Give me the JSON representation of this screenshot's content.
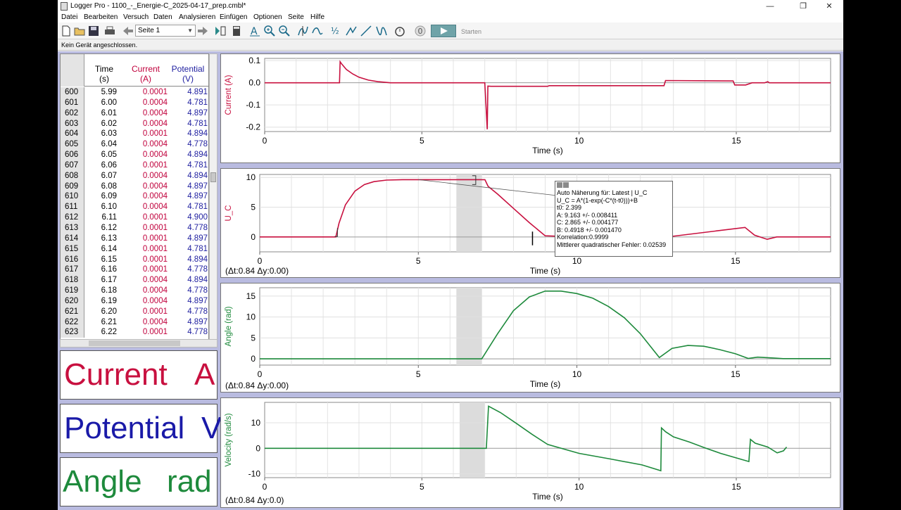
{
  "window": {
    "title": "Logger Pro - 1100_-_Energie-C_2025-04-17_prep.cmbl*",
    "min_symbol": "—",
    "max_symbol": "❐",
    "close_symbol": "✕"
  },
  "menu": [
    "Datei",
    "Bearbeiten",
    "Versuch",
    "Daten",
    "Analysieren",
    "Einfügen",
    "Optionen",
    "Seite",
    "Hilfe"
  ],
  "toolbar": {
    "page_select": "Seite 1",
    "start_label": "Starten",
    "icons": [
      "new-file-icon",
      "open-folder-icon",
      "save-icon",
      "print-icon",
      "back-arrow-icon",
      "forward-arrow-icon",
      "data-browser-icon",
      "calculator-icon",
      "autoscale-icon",
      "zoom-in-icon",
      "zoom-out-icon",
      "examine-icon",
      "tangent-icon",
      "integral-icon",
      "statistics-icon",
      "linear-fit-icon",
      "curve-fit-icon",
      "stopwatch-icon",
      "zero-icon",
      "start-icon"
    ]
  },
  "status": "Kein Gerät angeschlossen.",
  "table": {
    "columns": [
      {
        "name": "Time",
        "unit": "(s)"
      },
      {
        "name": "Current",
        "unit": "(A)"
      },
      {
        "name": "Potential",
        "unit": "(V)"
      }
    ],
    "rows": [
      [
        "600",
        "5.99",
        "0.0001",
        "4.891"
      ],
      [
        "601",
        "6.00",
        "0.0004",
        "4.781"
      ],
      [
        "602",
        "6.01",
        "0.0004",
        "4.897"
      ],
      [
        "603",
        "6.02",
        "0.0004",
        "4.781"
      ],
      [
        "604",
        "6.03",
        "0.0001",
        "4.894"
      ],
      [
        "605",
        "6.04",
        "0.0004",
        "4.778"
      ],
      [
        "606",
        "6.05",
        "0.0004",
        "4.894"
      ],
      [
        "607",
        "6.06",
        "0.0001",
        "4.781"
      ],
      [
        "608",
        "6.07",
        "0.0004",
        "4.894"
      ],
      [
        "609",
        "6.08",
        "0.0004",
        "4.897"
      ],
      [
        "610",
        "6.09",
        "0.0004",
        "4.897"
      ],
      [
        "611",
        "6.10",
        "0.0004",
        "4.781"
      ],
      [
        "612",
        "6.11",
        "0.0001",
        "4.900"
      ],
      [
        "613",
        "6.12",
        "0.0001",
        "4.778"
      ],
      [
        "614",
        "6.13",
        "0.0001",
        "4.897"
      ],
      [
        "615",
        "6.14",
        "0.0001",
        "4.781"
      ],
      [
        "616",
        "6.15",
        "0.0001",
        "4.894"
      ],
      [
        "617",
        "6.16",
        "0.0001",
        "4.778"
      ],
      [
        "618",
        "6.17",
        "0.0004",
        "4.894"
      ],
      [
        "619",
        "6.18",
        "0.0004",
        "4.778"
      ],
      [
        "620",
        "6.19",
        "0.0004",
        "4.897"
      ],
      [
        "621",
        "6.20",
        "0.0001",
        "4.778"
      ],
      [
        "622",
        "6.21",
        "0.0004",
        "4.897"
      ],
      [
        "623",
        "6.22",
        "0.0001",
        "4.778"
      ]
    ]
  },
  "meters": [
    {
      "name": "Current",
      "unit": "A",
      "color": "#c8103f"
    },
    {
      "name": "Potential",
      "unit": "V",
      "color": "#1a1aa8"
    },
    {
      "name": "Angle",
      "unit": "rad",
      "color": "#1e8a3c"
    }
  ],
  "colors": {
    "current": "#c8103f",
    "potential": "#c8103f",
    "green": "#1e8a3c",
    "selection": "#dcdcdc"
  },
  "graph_current": {
    "delta": ""
  },
  "graph_uc": {
    "delta": "(Δt:0.84 Δy:0.00)"
  },
  "graph_angle": {
    "delta": "(Δt:0.84 Δy:0.00)"
  },
  "graph_velocity": {
    "delta": "(Δt:0.84 Δy:0.0)"
  },
  "fit": {
    "lines": [
      "Auto Näherung für: Latest | U_C",
      "U_C = A*(1-exp(-C*(t-t0)))+B",
      "t0: 2.399",
      "A: 9.163 +/- 0.008411",
      "C: 2.865 +/- 0.004177",
      "B: 0.4918 +/- 0.001470",
      "Korrelation:0.9999",
      "Mittlerer quadratischer Fehler: 0.02539"
    ]
  },
  "chart_data": [
    {
      "type": "line",
      "xlabel": "Time (s)",
      "ylabel": "Current (A)",
      "xlim": [
        0,
        18
      ],
      "ylim": [
        -0.22,
        0.11
      ],
      "xticks": [
        0,
        5,
        10,
        15
      ],
      "yticks": [
        0.1,
        0.0,
        -0.1,
        -0.2
      ],
      "ytick_labels": [
        "0.1",
        "0.0",
        "-0.1",
        "-0.2"
      ],
      "x": [
        0,
        2.38,
        2.4,
        2.45,
        2.6,
        2.8,
        3.0,
        3.3,
        3.6,
        4.0,
        7.0,
        7.08,
        7.1,
        7.2,
        7.3,
        7.5,
        9.0,
        9.05,
        12.7,
        12.75,
        14.9,
        14.95,
        15.3,
        15.5,
        15.9,
        16.0,
        16.05,
        18.0
      ],
      "y": [
        0.0,
        0.0,
        0.095,
        0.085,
        0.06,
        0.04,
        0.025,
        0.012,
        0.005,
        0.0,
        0.0,
        -0.21,
        -0.015,
        -0.016,
        -0.016,
        -0.016,
        -0.016,
        -0.013,
        -0.013,
        0.01,
        0.008,
        -0.01,
        -0.01,
        0.0,
        0.0,
        0.005,
        0.0,
        0.0
      ],
      "series": [
        {
          "name": "Current",
          "color": "#c8103f"
        }
      ]
    },
    {
      "type": "line",
      "xlabel": "Time (s)",
      "ylabel": "U_C",
      "xlim": [
        0,
        18
      ],
      "ylim": [
        -2.5,
        10.5
      ],
      "xticks": [
        0,
        5,
        10,
        15
      ],
      "yticks": [
        10,
        5,
        0
      ],
      "selection": [
        6.2,
        7.0
      ],
      "x": [
        0,
        2.4,
        2.5,
        2.7,
        3.0,
        3.3,
        3.6,
        4.0,
        4.5,
        5.0,
        7.1,
        7.2,
        7.5,
        8.0,
        8.5,
        9.0,
        10.0,
        12.5,
        13.0,
        15.3,
        15.6,
        16.0,
        16.3,
        18.0
      ],
      "y": [
        0,
        0,
        2.3,
        5.4,
        7.7,
        8.8,
        9.3,
        9.55,
        9.62,
        9.63,
        9.63,
        8.5,
        7.2,
        4.8,
        2.4,
        0.2,
        0.0,
        0.0,
        0.1,
        1.6,
        0.3,
        -0.4,
        0.0,
        0.0
      ],
      "series": [
        {
          "name": "U_C",
          "color": "#c8103f"
        }
      ]
    },
    {
      "type": "line",
      "xlabel": "Time (s)",
      "ylabel": "Angle (rad)",
      "xlim": [
        0,
        18
      ],
      "ylim": [
        -1.5,
        17
      ],
      "xticks": [
        0,
        5,
        10,
        15
      ],
      "yticks": [
        15,
        10,
        5,
        0
      ],
      "selection": [
        6.2,
        7.0
      ],
      "x": [
        0,
        7.0,
        7.5,
        8.0,
        8.5,
        9.0,
        9.5,
        10.0,
        10.5,
        11.0,
        11.5,
        12.0,
        12.6,
        13.0,
        13.5,
        14.0,
        14.5,
        15.0,
        15.4,
        15.7,
        16.2,
        16.5,
        18.0
      ],
      "y": [
        0,
        0,
        6.0,
        11.5,
        14.8,
        16.2,
        16.2,
        15.6,
        14.5,
        12.5,
        9.8,
        6.0,
        0.3,
        2.5,
        3.2,
        3.0,
        2.2,
        1.2,
        0.1,
        0.4,
        0.2,
        0.05,
        0.05
      ],
      "series": [
        {
          "name": "Angle",
          "color": "#1e8a3c"
        }
      ]
    },
    {
      "type": "line",
      "xlabel": "Time (s)",
      "ylabel": "Velocity (rad/s)",
      "xlim": [
        0,
        18
      ],
      "ylim": [
        -11.5,
        18
      ],
      "xticks": [
        0,
        5,
        10,
        15
      ],
      "yticks": [
        10,
        0,
        -10
      ],
      "selection": [
        6.2,
        7.0
      ],
      "x": [
        0,
        7.05,
        7.12,
        7.5,
        8.0,
        8.5,
        9.0,
        10.0,
        11.0,
        12.0,
        12.6,
        12.62,
        12.75,
        13.0,
        13.5,
        14.0,
        14.5,
        15.4,
        15.45,
        15.6,
        16.0,
        16.3,
        16.5,
        16.6
      ],
      "y": [
        0,
        0,
        16.5,
        14.0,
        9.8,
        5.5,
        1.5,
        -2.0,
        -4.2,
        -6.5,
        -8.8,
        8.0,
        6.5,
        4.5,
        2.5,
        0.2,
        -2.0,
        -5.2,
        3.5,
        2.0,
        0.5,
        -1.8,
        -1.0,
        0.5
      ],
      "series": [
        {
          "name": "Velocity",
          "color": "#1e8a3c"
        }
      ]
    }
  ]
}
